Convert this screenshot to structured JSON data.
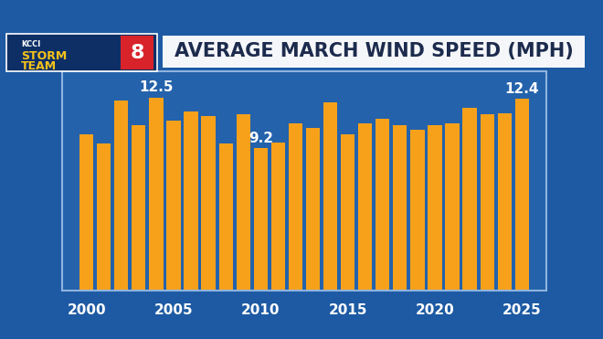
{
  "chart_data": {
    "type": "bar",
    "title": "AVERAGE MARCH WIND SPEED (MPH)",
    "annotations": [
      "KCCI",
      "STORM",
      "TEAM",
      "8"
    ],
    "x": [
      2000,
      2001,
      2002,
      2003,
      2004,
      2005,
      2006,
      2007,
      2008,
      2009,
      2010,
      2011,
      2012,
      2013,
      2014,
      2015,
      2016,
      2017,
      2018,
      2019,
      2020,
      2021,
      2022,
      2023,
      2024,
      2025
    ],
    "values": [
      10.1,
      9.5,
      12.3,
      10.7,
      12.5,
      11.0,
      11.6,
      11.3,
      9.5,
      11.4,
      9.2,
      9.6,
      10.8,
      10.5,
      12.2,
      10.1,
      10.8,
      11.1,
      10.7,
      10.4,
      10.7,
      10.8,
      11.8,
      11.4,
      11.5,
      12.4
    ],
    "value_labels": [
      null,
      null,
      null,
      null,
      "12.5",
      null,
      null,
      null,
      null,
      null,
      "9.2",
      null,
      null,
      null,
      null,
      null,
      null,
      null,
      null,
      null,
      null,
      null,
      null,
      null,
      null,
      "12.4"
    ],
    "color": "#f7a11a",
    "xlim": [
      1998.6,
      2026.4
    ],
    "xticks": [
      2000,
      2005,
      2010,
      2015,
      2020,
      2025
    ],
    "ylim": [
      0,
      14.2
    ],
    "tick_labels": "x",
    "grid": false
  }
}
